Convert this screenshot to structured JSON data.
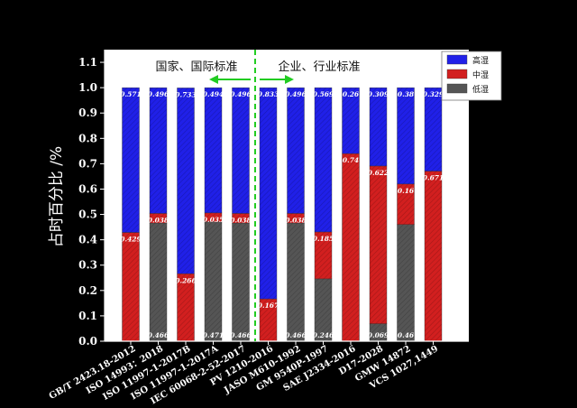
{
  "chart_data": {
    "type": "bar",
    "stacked": true,
    "ylabel": "占时百分比 /%",
    "ylim": [
      0,
      1.15
    ],
    "yticks": [
      "0.0",
      "0.1",
      "0.2",
      "0.3",
      "0.4",
      "0.5",
      "0.6",
      "0.7",
      "0.8",
      "0.9",
      "1.0",
      "1.1"
    ],
    "categories": [
      "GB/T 2423.18-2012",
      "ISO 14993：2018",
      "ISO 11997-1-2017B",
      "ISO 11997-1-2017A",
      "IEC 60068-2-52-2017",
      "PV 1210-2016",
      "JASO M610-1992",
      "GM 9540P-1997",
      "SAE J2334-2016",
      "D17-2028",
      "GMW 14872",
      "VCS 1027,1449"
    ],
    "series": [
      {
        "name": "低湿",
        "color": "#555555",
        "values": [
          0,
          0.466,
          0,
          0.471,
          0.466,
          0,
          0.466,
          0.246,
          0,
          0.069,
          0.46,
          0
        ]
      },
      {
        "name": "中湿",
        "color": "#d21f1f",
        "values": [
          0.429,
          0.038,
          0.266,
          0.035,
          0.038,
          0.167,
          0.038,
          0.185,
          0.74,
          0.622,
          0.16,
          0.671
        ]
      },
      {
        "name": "高湿",
        "color": "#2020e8",
        "values": [
          0.571,
          0.496,
          0.733,
          0.494,
          0.496,
          0.833,
          0.496,
          0.569,
          0.26,
          0.309,
          0.38,
          0.329
        ]
      }
    ],
    "labels": {
      "low": [
        "",
        "0.466",
        "",
        "0.471",
        "0.466",
        "",
        "0.466",
        "0.246",
        "",
        "0.069",
        "0.46",
        ""
      ],
      "mid": [
        "0.429",
        "0.038",
        "0.266",
        "0.035",
        "0.038",
        "0.167",
        "0.038",
        "0.185",
        "0.74",
        "0.622",
        "0.16",
        "0.671"
      ],
      "high": [
        "0.571",
        "0.496",
        "0.733",
        "0.494",
        "0.496",
        "0.833",
        "0.496",
        "0.569",
        "0.26",
        "0.309",
        "0.38",
        "0.329"
      ]
    },
    "group_labels": {
      "left": "国家、国际标准",
      "right": "企业、行业标准"
    },
    "legend": {
      "placement": "top-right",
      "items": [
        "高湿",
        "中湿",
        "低湿"
      ]
    },
    "grid": false
  }
}
